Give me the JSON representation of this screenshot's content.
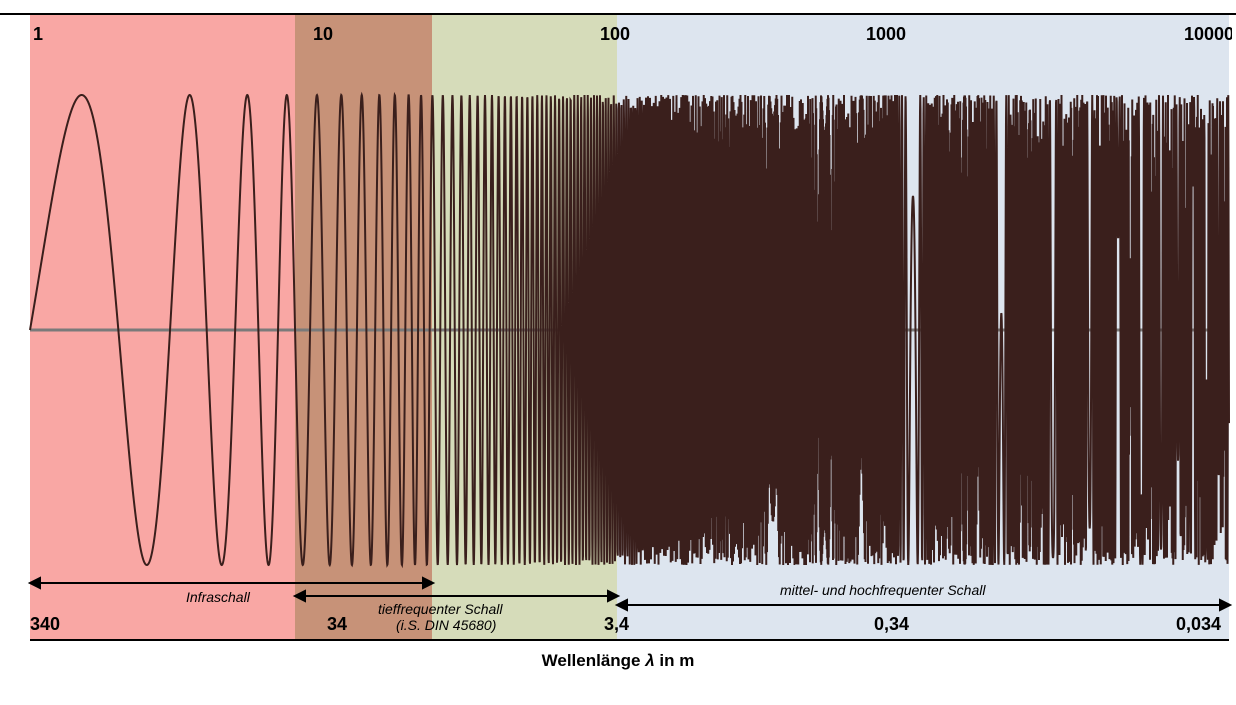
{
  "frequency_labels": [
    "1",
    "10",
    "100",
    "1000",
    "10000"
  ],
  "wavelength_labels": [
    "340",
    "34",
    "3,4",
    "0,34",
    "0,034"
  ],
  "ranges": {
    "infra": "Infraschall",
    "low": "tieffrequenter Schall",
    "low_note": "(i.S. DIN 45680)",
    "mid": "mittel- und hochfrequenter Schall"
  },
  "caption": {
    "text": "Wellenlänge ",
    "symbol": "λ",
    "unit": " in m"
  },
  "colors": {
    "infra": "#f9a7a4",
    "overlap": "#c79278",
    "low": "#d6dcba",
    "mid": "#dde5ef",
    "wave": "#3a1f1c",
    "axis": "#7a7a7a"
  },
  "wave_scale": "log",
  "wave_frequency_range": [
    1,
    10000
  ]
}
